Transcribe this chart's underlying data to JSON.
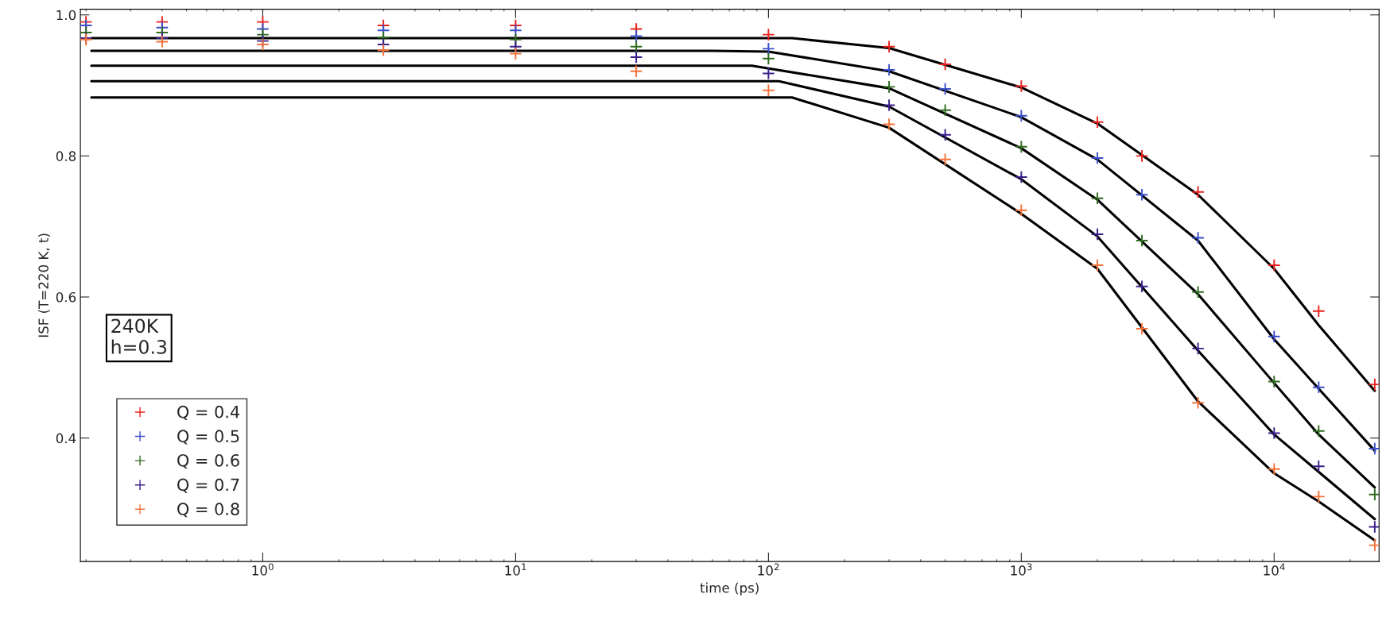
{
  "chart_data": {
    "type": "scatter",
    "xlabel": "time (ps)",
    "ylabel": "ISF (T=220 K, t)",
    "log": "x",
    "xlim": [
      0.19,
      26000
    ],
    "ylim": [
      0.225,
      1.008
    ],
    "xticks": [
      {
        "value": 1,
        "label": "10$^{0}$"
      },
      {
        "value": 10,
        "label": "10$^{1}$"
      },
      {
        "value": 100,
        "label": "10$^{2}$"
      },
      {
        "value": 1000,
        "label": "10$^{3}$"
      },
      {
        "value": 10000,
        "label": "10$^{4}$"
      }
    ],
    "yticks": [
      0.4,
      0.6,
      0.8,
      {
        "value": 1,
        "label": "1.0"
      }
    ],
    "grid": false,
    "legend": "bottom left",
    "annotations": [
      "240K\nh=0.3"
    ],
    "series": [
      {
        "name": "Q = 0.4",
        "color": "#e8231e",
        "marker": "cross",
        "x": [
          0.2,
          0.4,
          1,
          3,
          10,
          30,
          100,
          300,
          500,
          1000,
          2000,
          3000,
          5000,
          10000,
          15000,
          25000
        ],
        "values": [
          0.99,
          0.99,
          0.99,
          0.985,
          0.985,
          0.98,
          0.972,
          0.955,
          0.93,
          0.899,
          0.848,
          0.8,
          0.749,
          0.645,
          0.58,
          0.476
        ]
      },
      {
        "name": "Q = 0.5",
        "color": "#3a4fc8",
        "marker": "cross",
        "x": [
          0.2,
          0.4,
          1,
          3,
          10,
          30,
          100,
          300,
          500,
          1000,
          2000,
          3000,
          5000,
          10000,
          15000,
          25000
        ],
        "values": [
          0.985,
          0.982,
          0.98,
          0.978,
          0.978,
          0.97,
          0.952,
          0.922,
          0.895,
          0.857,
          0.797,
          0.745,
          0.684,
          0.544,
          0.472,
          0.385
        ]
      },
      {
        "name": "Q = 0.6",
        "color": "#2e6b1e",
        "marker": "cross",
        "x": [
          0.2,
          0.4,
          1,
          3,
          10,
          30,
          100,
          300,
          500,
          1000,
          2000,
          3000,
          5000,
          10000,
          15000,
          25000
        ],
        "values": [
          0.975,
          0.975,
          0.972,
          0.968,
          0.965,
          0.955,
          0.938,
          0.898,
          0.865,
          0.813,
          0.74,
          0.68,
          0.607,
          0.48,
          0.41,
          0.32
        ]
      },
      {
        "name": "Q = 0.7",
        "color": "#3a1f8a",
        "marker": "cross",
        "x": [
          0.2,
          0.4,
          1,
          3,
          10,
          30,
          100,
          300,
          500,
          1000,
          2000,
          3000,
          5000,
          10000,
          15000,
          25000
        ],
        "values": [
          0.967,
          0.967,
          0.963,
          0.958,
          0.955,
          0.94,
          0.917,
          0.872,
          0.83,
          0.77,
          0.689,
          0.615,
          0.527,
          0.407,
          0.36,
          0.274
        ]
      },
      {
        "name": "Q = 0.8",
        "color": "#f4733a",
        "marker": "cross",
        "x": [
          0.2,
          0.4,
          1,
          3,
          10,
          30,
          100,
          300,
          500,
          1000,
          2000,
          3000,
          5000,
          10000,
          15000,
          25000
        ],
        "values": [
          0.965,
          0.962,
          0.958,
          0.95,
          0.945,
          0.92,
          0.893,
          0.845,
          0.795,
          0.723,
          0.645,
          0.555,
          0.45,
          0.356,
          0.317,
          0.248
        ]
      },
      {
        "type": "line",
        "color": "#000000",
        "x": [
          0.21,
          124,
          300,
          1000,
          2000,
          5000,
          10000,
          15000,
          25000
        ],
        "values": [
          0.967,
          0.967,
          0.953,
          0.897,
          0.846,
          0.745,
          0.64,
          0.56,
          0.467
        ]
      },
      {
        "type": "line",
        "color": "#000000",
        "x": [
          0.21,
          60,
          100,
          300,
          1000,
          2000,
          5000,
          10000,
          15000,
          25000
        ],
        "values": [
          0.949,
          0.949,
          0.948,
          0.92,
          0.855,
          0.795,
          0.68,
          0.54,
          0.47,
          0.382
        ]
      },
      {
        "type": "line",
        "color": "#000000",
        "x": [
          0.21,
          86,
          300,
          1000,
          2000,
          5000,
          10000,
          15000,
          25000
        ],
        "values": [
          0.928,
          0.928,
          0.896,
          0.811,
          0.738,
          0.604,
          0.478,
          0.405,
          0.33
        ]
      },
      {
        "type": "line",
        "color": "#000000",
        "x": [
          0.21,
          110,
          300,
          1000,
          2000,
          5000,
          10000,
          15000,
          25000
        ],
        "values": [
          0.906,
          0.906,
          0.87,
          0.767,
          0.686,
          0.524,
          0.405,
          0.352,
          0.285
        ]
      },
      {
        "type": "line",
        "color": "#000000",
        "x": [
          0.21,
          124,
          300,
          1000,
          2000,
          5000,
          10000,
          15000,
          25000
        ],
        "values": [
          0.883,
          0.883,
          0.84,
          0.718,
          0.64,
          0.452,
          0.35,
          0.31,
          0.255
        ]
      }
    ]
  }
}
